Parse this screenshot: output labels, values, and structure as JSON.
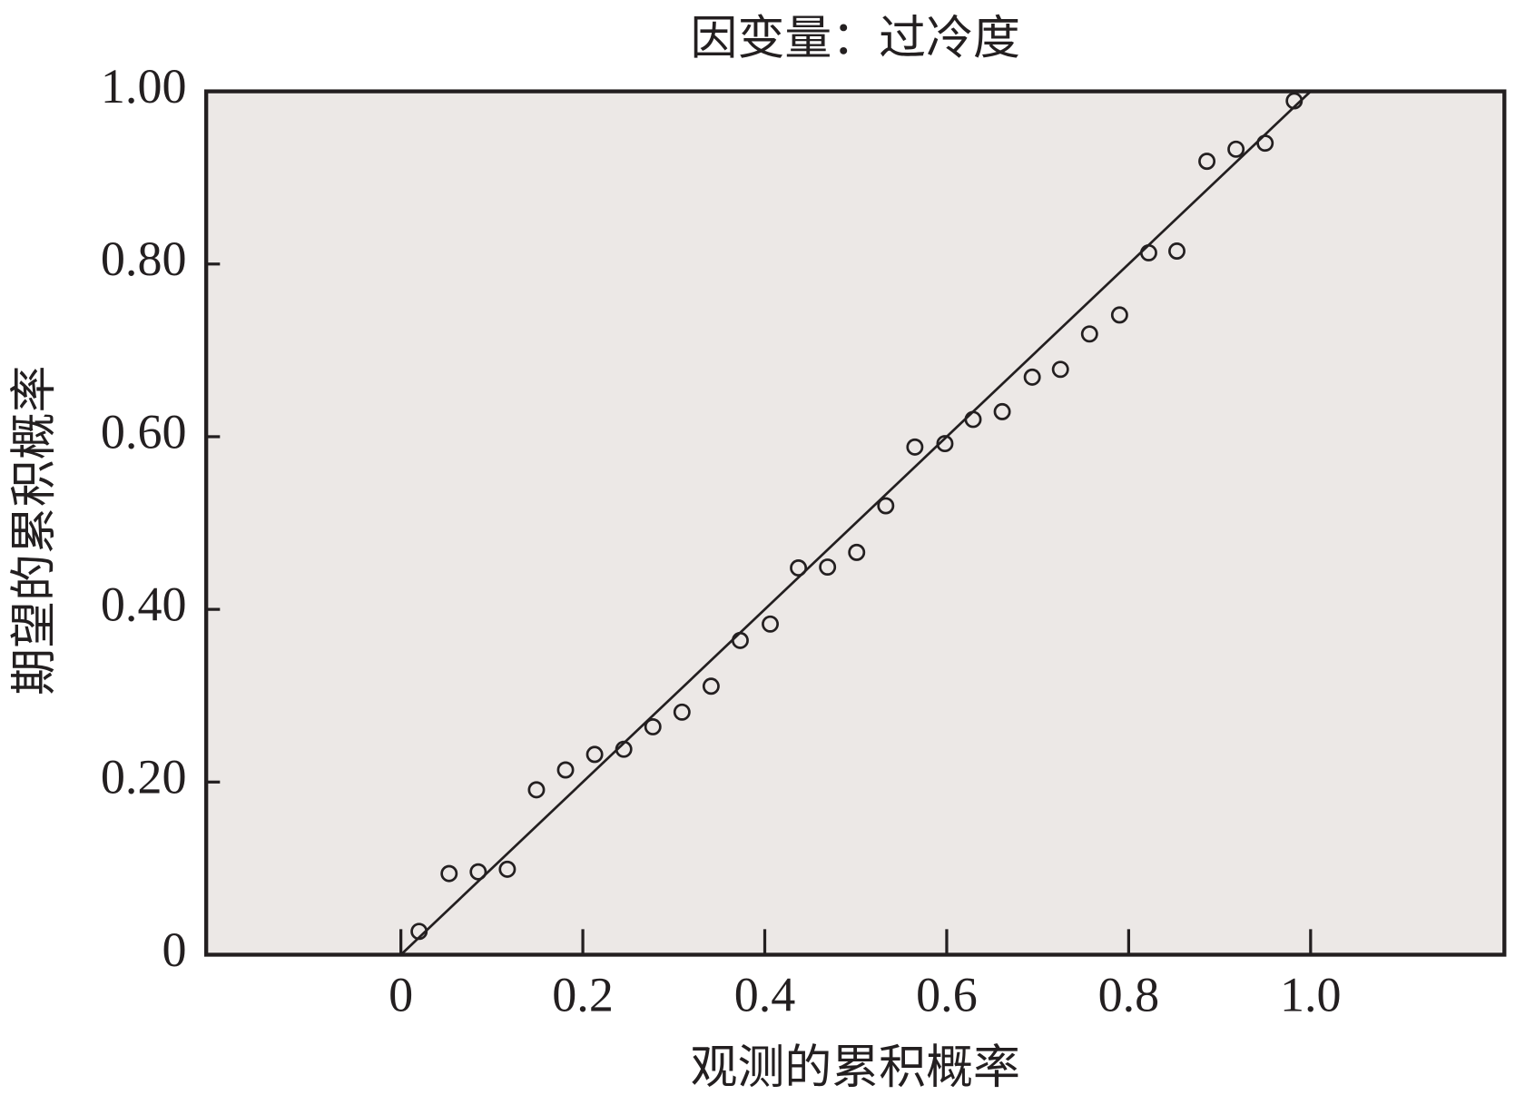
{
  "chart_data": {
    "type": "scatter",
    "title": "因变量：过冷度",
    "x_label": "观测的累积概率",
    "y_label": "期望的累积概率",
    "plot_background": "#ece8e6",
    "marker_color": "#231f20",
    "xlim": [
      -0.214,
      1.213
    ],
    "ylim": [
      0,
      1
    ],
    "xticks": [
      0,
      0.2,
      0.4,
      0.6,
      0.8,
      {
        "value": 1,
        "label": "1.0"
      }
    ],
    "yticks": [
      0,
      {
        "value": 0.2,
        "label": "0.20"
      },
      {
        "value": 0.4,
        "label": "0.40"
      },
      {
        "value": 0.6,
        "label": "0.60"
      },
      {
        "value": 0.8,
        "label": "0.80"
      },
      {
        "value": 1,
        "label": "1.00"
      }
    ],
    "reference_line": {
      "x": [
        0,
        1
      ],
      "y": [
        0,
        1
      ]
    },
    "x": [
      0.02,
      0.053,
      0.085,
      0.117,
      0.149,
      0.181,
      0.213,
      0.245,
      0.277,
      0.309,
      0.341,
      0.373,
      0.406,
      0.437,
      0.469,
      0.501,
      0.533,
      0.565,
      0.598,
      0.629,
      0.661,
      0.694,
      0.725,
      0.757,
      0.79,
      0.822,
      0.853,
      0.886,
      0.918,
      0.95,
      0.982
    ],
    "values": [
      0.027,
      0.094,
      0.096,
      0.099,
      0.191,
      0.214,
      0.232,
      0.238,
      0.264,
      0.281,
      0.311,
      0.364,
      0.383,
      0.448,
      0.449,
      0.466,
      0.52,
      0.588,
      0.592,
      0.62,
      0.629,
      0.669,
      0.678,
      0.719,
      0.741,
      0.813,
      0.815,
      0.919,
      0.933,
      0.94,
      0.989
    ]
  }
}
